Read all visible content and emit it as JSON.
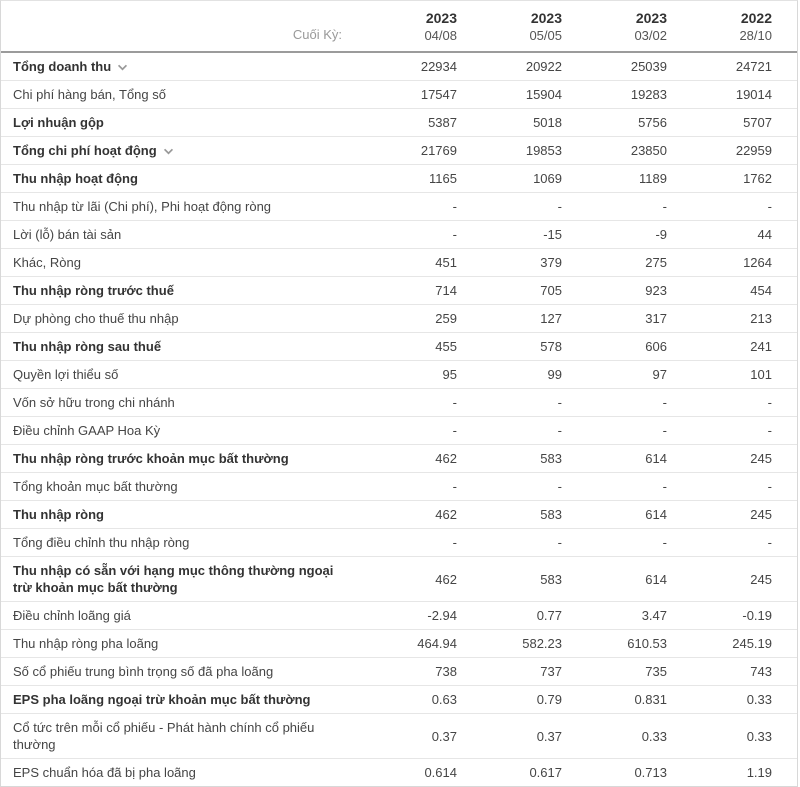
{
  "table": {
    "period_label": "Cuối Kỳ:",
    "columns": [
      {
        "year": "2023",
        "date": "04/08"
      },
      {
        "year": "2023",
        "date": "05/05"
      },
      {
        "year": "2023",
        "date": "03/02"
      },
      {
        "year": "2022",
        "date": "28/10"
      }
    ],
    "rows": [
      {
        "label": "Tổng doanh thu",
        "bold": true,
        "expandable": true,
        "values": [
          "22934",
          "20922",
          "25039",
          "24721"
        ]
      },
      {
        "label": "Chi phí hàng bán, Tổng số",
        "bold": false,
        "expandable": false,
        "values": [
          "17547",
          "15904",
          "19283",
          "19014"
        ]
      },
      {
        "label": "Lợi nhuận gộp",
        "bold": true,
        "expandable": false,
        "values": [
          "5387",
          "5018",
          "5756",
          "5707"
        ]
      },
      {
        "label": "Tổng chi phí hoạt động",
        "bold": true,
        "expandable": true,
        "values": [
          "21769",
          "19853",
          "23850",
          "22959"
        ]
      },
      {
        "label": "Thu nhập hoạt động",
        "bold": true,
        "expandable": false,
        "values": [
          "1165",
          "1069",
          "1189",
          "1762"
        ]
      },
      {
        "label": "Thu nhập từ lãi (Chi phí), Phi hoạt động ròng",
        "bold": false,
        "expandable": false,
        "values": [
          "-",
          "-",
          "-",
          "-"
        ]
      },
      {
        "label": "Lời (lỗ) bán tài sản",
        "bold": false,
        "expandable": false,
        "values": [
          "-",
          "-15",
          "-9",
          "44"
        ]
      },
      {
        "label": "Khác, Ròng",
        "bold": false,
        "expandable": false,
        "values": [
          "451",
          "379",
          "275",
          "1264"
        ]
      },
      {
        "label": "Thu nhập ròng trước thuế",
        "bold": true,
        "expandable": false,
        "values": [
          "714",
          "705",
          "923",
          "454"
        ]
      },
      {
        "label": "Dự phòng cho thuế thu nhập",
        "bold": false,
        "expandable": false,
        "values": [
          "259",
          "127",
          "317",
          "213"
        ]
      },
      {
        "label": "Thu nhập ròng sau thuế",
        "bold": true,
        "expandable": false,
        "values": [
          "455",
          "578",
          "606",
          "241"
        ]
      },
      {
        "label": "Quyền lợi thiểu số",
        "bold": false,
        "expandable": false,
        "values": [
          "95",
          "99",
          "97",
          "101"
        ]
      },
      {
        "label": "Vốn sở hữu trong chi nhánh",
        "bold": false,
        "expandable": false,
        "values": [
          "-",
          "-",
          "-",
          "-"
        ]
      },
      {
        "label": "Điều chỉnh GAAP Hoa Kỳ",
        "bold": false,
        "expandable": false,
        "values": [
          "-",
          "-",
          "-",
          "-"
        ]
      },
      {
        "label": "Thu nhập ròng trước khoản mục bất thường",
        "bold": true,
        "expandable": false,
        "values": [
          "462",
          "583",
          "614",
          "245"
        ]
      },
      {
        "label": "Tổng khoản mục bất thường",
        "bold": false,
        "expandable": false,
        "values": [
          "-",
          "-",
          "-",
          "-"
        ]
      },
      {
        "label": "Thu nhập ròng",
        "bold": true,
        "expandable": false,
        "values": [
          "462",
          "583",
          "614",
          "245"
        ]
      },
      {
        "label": "Tổng điều chỉnh thu nhập ròng",
        "bold": false,
        "expandable": false,
        "values": [
          "-",
          "-",
          "-",
          "-"
        ]
      },
      {
        "label": "Thu nhập có sẵn với hạng mục thông thường ngoại trừ khoản mục bất thường",
        "bold": true,
        "expandable": false,
        "values": [
          "462",
          "583",
          "614",
          "245"
        ]
      },
      {
        "label": "Điều chỉnh loãng giá",
        "bold": false,
        "expandable": false,
        "values": [
          "-2.94",
          "0.77",
          "3.47",
          "-0.19"
        ]
      },
      {
        "label": "Thu nhập ròng pha loãng",
        "bold": false,
        "expandable": false,
        "values": [
          "464.94",
          "582.23",
          "610.53",
          "245.19"
        ]
      },
      {
        "label": "Số cổ phiếu trung bình trọng số đã pha loãng",
        "bold": false,
        "expandable": false,
        "values": [
          "738",
          "737",
          "735",
          "743"
        ]
      },
      {
        "label": "EPS pha loãng ngoại trừ khoản mục bất thường",
        "bold": true,
        "expandable": false,
        "values": [
          "0.63",
          "0.79",
          "0.831",
          "0.33"
        ]
      },
      {
        "label": "Cổ tức trên mỗi cổ phiếu - Phát hành chính cổ phiếu thường",
        "bold": false,
        "expandable": false,
        "values": [
          "0.37",
          "0.37",
          "0.33",
          "0.33"
        ]
      },
      {
        "label": "EPS chuẩn hóa đã bị pha loãng",
        "bold": false,
        "expandable": false,
        "values": [
          "0.614",
          "0.617",
          "0.713",
          "1.19"
        ]
      }
    ]
  },
  "icons": {
    "expand_icon": "chevron-down-icon"
  },
  "colors": {
    "row_border": "#e6e6e6",
    "header_border": "#9b9b9b",
    "outer_border": "#d8d8d8",
    "text": "#454545",
    "bold_text": "#333333",
    "muted_text": "#999999",
    "chevron": "#999999"
  }
}
